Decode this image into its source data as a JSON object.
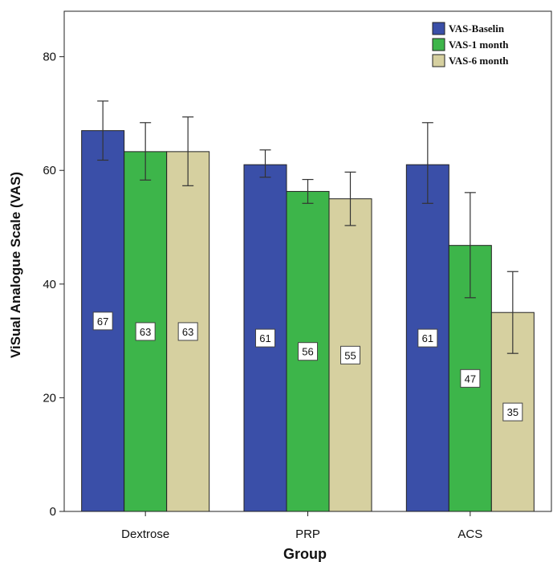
{
  "chart_data": {
    "type": "bar",
    "title": "",
    "xlabel": "Group",
    "ylabel": "ViSual Analogue Scale (VAS)",
    "categories": [
      "Dextrose",
      "PRP",
      "ACS"
    ],
    "ylim": [
      0,
      88
    ],
    "yticks": [
      0,
      20,
      40,
      60,
      80
    ],
    "grid": false,
    "legend_position": "top-right",
    "series": [
      {
        "name": "VAS-Baselin",
        "color": "#3a4fa8",
        "values": [
          67,
          61,
          61
        ],
        "labels": [
          "67",
          "61",
          "61"
        ],
        "error_low": [
          61.8,
          58.8,
          54.2
        ],
        "error_high": [
          72.2,
          63.6,
          68.4
        ]
      },
      {
        "name": "VAS-1 month",
        "color": "#3db54a",
        "values": [
          63.3,
          56.3,
          46.8
        ],
        "labels": [
          "63",
          "56",
          "47"
        ],
        "error_low": [
          58.3,
          54.2,
          37.6
        ],
        "error_high": [
          68.4,
          58.4,
          56.1
        ]
      },
      {
        "name": "VAS-6 month",
        "color": "#d6d0a0",
        "values": [
          63.3,
          55,
          35
        ],
        "labels": [
          "63",
          "55",
          "35"
        ],
        "error_low": [
          57.3,
          50.3,
          27.8
        ],
        "error_high": [
          69.4,
          59.7,
          42.2
        ]
      }
    ]
  }
}
